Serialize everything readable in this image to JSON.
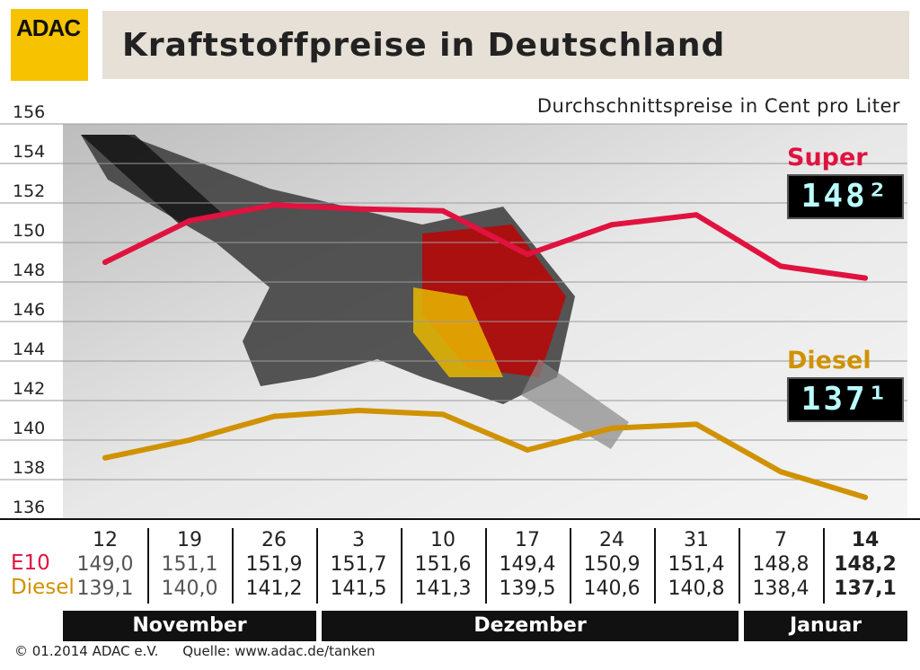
{
  "header": {
    "logo_text": "ADAC",
    "title": "Kraftstoffpreise in Deutschland",
    "subtitle": "Durchschnittspreise in Cent pro Liter"
  },
  "legend": {
    "e10_label": "Super E10",
    "e10_display": "148²",
    "diesel_label": "Diesel",
    "diesel_display": "137¹"
  },
  "table": {
    "row_labels": {
      "e10": "E10",
      "diesel": "Diesel"
    },
    "columns": [
      {
        "date": "12",
        "e10": "149,0",
        "diesel": "139,1"
      },
      {
        "date": "19",
        "e10": "151,1",
        "diesel": "140,0"
      },
      {
        "date": "26",
        "e10": "151,9",
        "diesel": "141,2"
      },
      {
        "date": "3",
        "e10": "151,7",
        "diesel": "141,5"
      },
      {
        "date": "10",
        "e10": "151,6",
        "diesel": "141,3"
      },
      {
        "date": "17",
        "e10": "149,4",
        "diesel": "139,5"
      },
      {
        "date": "24",
        "e10": "150,9",
        "diesel": "140,6"
      },
      {
        "date": "31",
        "e10": "151,4",
        "diesel": "140,8"
      },
      {
        "date": "7",
        "e10": "148,8",
        "diesel": "138,4"
      },
      {
        "date": "14",
        "e10": "148,2",
        "diesel": "137,1"
      }
    ],
    "months": [
      "November",
      "Dezember",
      "Januar"
    ]
  },
  "footer": {
    "copyright": "© 01.2014  ADAC e.V.",
    "source": "Quelle: www.adac.de/tanken"
  },
  "colors": {
    "e10": "#e0123f",
    "diesel": "#d09200",
    "logo": "#f7c300",
    "title_bg": "#e6e0d6"
  },
  "chart_data": {
    "type": "line",
    "title": "Kraftstoffpreise in Deutschland",
    "subtitle": "Durchschnittspreise in Cent pro Liter",
    "categories": [
      "12",
      "19",
      "26",
      "3",
      "10",
      "17",
      "24",
      "31",
      "7",
      "14"
    ],
    "series": [
      {
        "name": "Super E10",
        "color": "#e0123f",
        "values": [
          149.0,
          151.1,
          151.9,
          151.7,
          151.6,
          149.4,
          150.9,
          151.4,
          148.8,
          148.2
        ]
      },
      {
        "name": "Diesel",
        "color": "#d09200",
        "values": [
          139.1,
          140.0,
          141.2,
          141.5,
          141.3,
          139.5,
          140.6,
          140.8,
          138.4,
          137.1
        ]
      }
    ],
    "ylim": [
      136,
      156
    ],
    "yticks": [
      "136",
      "138",
      "140",
      "142",
      "144",
      "146",
      "148",
      "150",
      "152",
      "154",
      "156"
    ],
    "grid": true,
    "legend": "right"
  }
}
